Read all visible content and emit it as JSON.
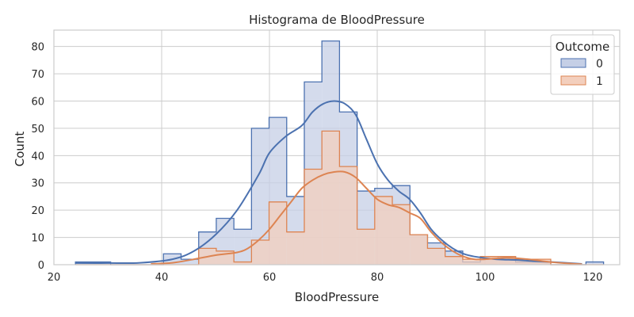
{
  "chart_data": {
    "type": "histogram",
    "title": "Histograma de BloodPressure",
    "xlabel": "BloodPressure",
    "ylabel": "Count",
    "xlim": [
      20,
      125
    ],
    "ylim": [
      0,
      86
    ],
    "xticks": [
      20,
      40,
      60,
      80,
      100,
      120
    ],
    "yticks": [
      0,
      10,
      20,
      30,
      40,
      50,
      60,
      70,
      80
    ],
    "grid": true,
    "legend": {
      "title": "Outcome",
      "placement": "top-right",
      "entries": [
        "0",
        "1"
      ]
    },
    "bin_edges": [
      24,
      27.27,
      30.53,
      33.8,
      37.07,
      40.33,
      43.6,
      46.87,
      50.13,
      53.4,
      56.67,
      59.93,
      63.2,
      66.47,
      69.73,
      73,
      76.27,
      79.53,
      82.8,
      86.07,
      89.33,
      92.6,
      95.87,
      99.13,
      102.4,
      105.67,
      108.93,
      112.2,
      115.47,
      118.73,
      122
    ],
    "series": [
      {
        "name": "0",
        "color": "#4c72b0",
        "fill": "#c5cfe6",
        "counts": [
          1,
          1,
          0,
          0,
          0,
          4,
          2,
          12,
          17,
          13,
          50,
          54,
          25,
          67,
          82,
          56,
          27,
          28,
          29,
          11,
          8,
          5,
          1,
          2,
          3,
          1,
          1,
          0,
          0,
          1
        ],
        "kde": [
          [
            24,
            0.6
          ],
          [
            30,
            0.6
          ],
          [
            36,
            0.7
          ],
          [
            42,
            2
          ],
          [
            46,
            5
          ],
          [
            50,
            11
          ],
          [
            54,
            20
          ],
          [
            58,
            33
          ],
          [
            60,
            41
          ],
          [
            63,
            47
          ],
          [
            66,
            51
          ],
          [
            68,
            56
          ],
          [
            70,
            59
          ],
          [
            72,
            60
          ],
          [
            74,
            59
          ],
          [
            76,
            55
          ],
          [
            78,
            46
          ],
          [
            80,
            37
          ],
          [
            82,
            31
          ],
          [
            84,
            27
          ],
          [
            86,
            24
          ],
          [
            88,
            19
          ],
          [
            90,
            13
          ],
          [
            92,
            9
          ],
          [
            94,
            6
          ],
          [
            96,
            4
          ],
          [
            98,
            3
          ],
          [
            102,
            2
          ],
          [
            106,
            1.7
          ],
          [
            110,
            1.2
          ],
          [
            114,
            0.8
          ],
          [
            118,
            0.3
          ]
        ]
      },
      {
        "name": "1",
        "color": "#dd8452",
        "fill": "#f3cfbd",
        "counts": [
          0,
          0,
          0,
          0,
          0,
          0,
          0,
          6,
          5,
          1,
          9,
          23,
          12,
          35,
          49,
          36,
          13,
          25,
          22,
          11,
          6,
          3,
          2,
          3,
          3,
          2,
          2,
          0,
          0,
          0
        ],
        "kde": [
          [
            38,
            0.3
          ],
          [
            42,
            0.7
          ],
          [
            46,
            2
          ],
          [
            50,
            3.5
          ],
          [
            54,
            4.5
          ],
          [
            56,
            6
          ],
          [
            58,
            9
          ],
          [
            60,
            13
          ],
          [
            62,
            18
          ],
          [
            64,
            23
          ],
          [
            66,
            28
          ],
          [
            68,
            31
          ],
          [
            70,
            33
          ],
          [
            72,
            34
          ],
          [
            74,
            34
          ],
          [
            76,
            32
          ],
          [
            78,
            28
          ],
          [
            80,
            24
          ],
          [
            82,
            22
          ],
          [
            84,
            21
          ],
          [
            86,
            19
          ],
          [
            88,
            17
          ],
          [
            90,
            12
          ],
          [
            92,
            8
          ],
          [
            94,
            5
          ],
          [
            96,
            3
          ],
          [
            98,
            2
          ],
          [
            100,
            2
          ],
          [
            104,
            2.5
          ],
          [
            108,
            2
          ],
          [
            112,
            1
          ],
          [
            116,
            0.4
          ],
          [
            118,
            0.2
          ]
        ]
      }
    ]
  }
}
